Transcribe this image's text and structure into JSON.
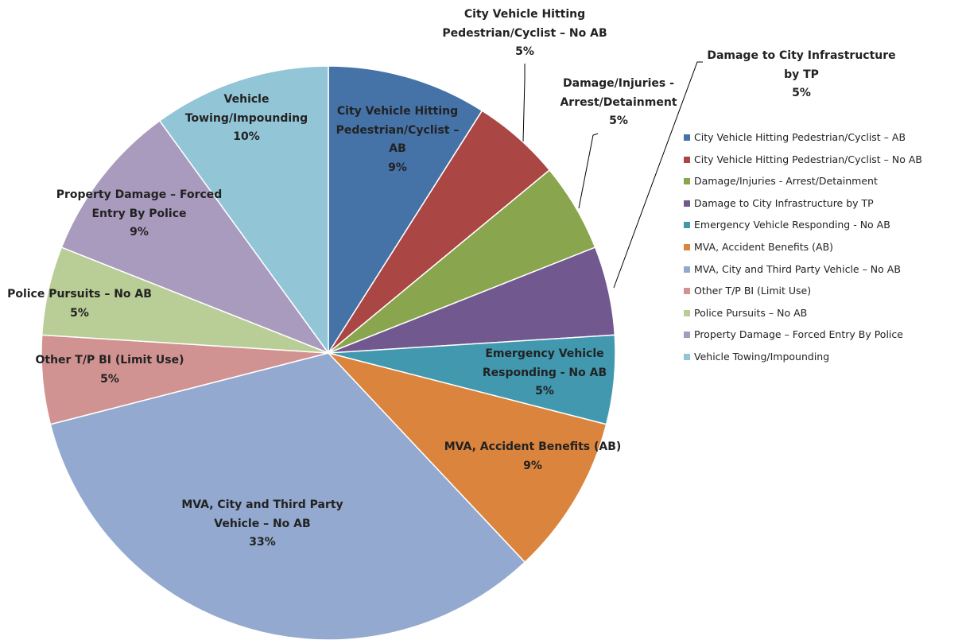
{
  "chart_data": {
    "type": "pie",
    "categories": [
      "City Vehicle Hitting Pedestrian/Cyclist – AB",
      "City Vehicle Hitting Pedestrian/Cyclist – No AB",
      "Damage/Injuries - Arrest/Detainment",
      "Damage to City Infrastructure by TP",
      "Emergency Vehicle Responding - No AB",
      "MVA, Accident Benefits (AB)",
      "MVA, City and Third Party Vehicle – No AB",
      "Other T/P BI (Limit Use)",
      "Police Pursuits – No AB",
      "Property Damage – Forced Entry By Police",
      "Vehicle Towing/Impounding"
    ],
    "values": [
      9,
      5,
      5,
      5,
      5,
      9,
      33,
      5,
      5,
      9,
      10
    ],
    "value_labels": [
      "9%",
      "5%",
      "5%",
      "5%",
      "5%",
      "9%",
      "33%",
      "5%",
      "5%",
      "9%",
      "10%"
    ],
    "colors": [
      "#4572a7",
      "#aa4643",
      "#89a54e",
      "#71588f",
      "#4198af",
      "#db843d",
      "#93a9cf",
      "#d19392",
      "#b9cd96",
      "#a99bbd",
      "#92c5d6"
    ],
    "legend": "right"
  }
}
